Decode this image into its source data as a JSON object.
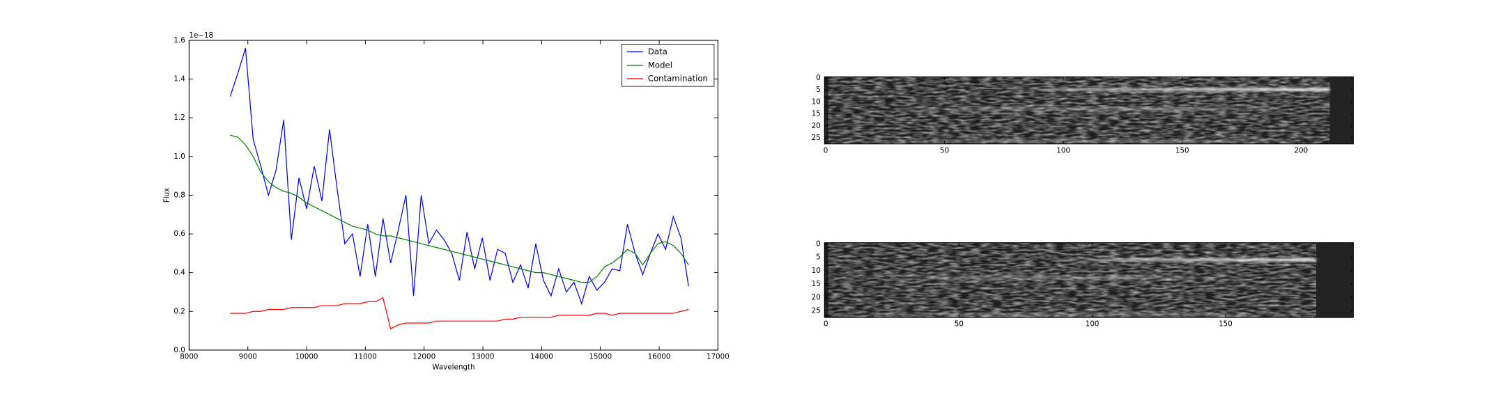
{
  "chart_data": [
    {
      "type": "line",
      "y_offset_label": "1e−18",
      "xlabel": "Wavelength",
      "ylabel": "Flux",
      "x": [
        8700,
        8830,
        8960,
        9090,
        9220,
        9350,
        9480,
        9610,
        9740,
        9870,
        10000,
        10130,
        10260,
        10390,
        10520,
        10650,
        10780,
        10910,
        11040,
        11170,
        11300,
        11430,
        11560,
        11690,
        11820,
        11950,
        12080,
        12210,
        12340,
        12470,
        12600,
        12730,
        12860,
        12990,
        13120,
        13250,
        13380,
        13510,
        13640,
        13770,
        13900,
        14030,
        14160,
        14290,
        14420,
        14550,
        14680,
        14810,
        14940,
        15070,
        15200,
        15330,
        15460,
        15590,
        15720,
        15850,
        15980,
        16110,
        16240,
        16370,
        16500
      ],
      "series": [
        {
          "name": "Data",
          "color": "#0000ff",
          "values": [
            1.31,
            1.43,
            1.56,
            1.09,
            0.95,
            0.8,
            0.93,
            1.19,
            0.57,
            0.89,
            0.73,
            0.95,
            0.77,
            1.14,
            0.83,
            0.55,
            0.6,
            0.38,
            0.65,
            0.38,
            0.68,
            0.45,
            0.62,
            0.8,
            0.28,
            0.8,
            0.55,
            0.62,
            0.57,
            0.5,
            0.36,
            0.61,
            0.42,
            0.58,
            0.36,
            0.52,
            0.5,
            0.35,
            0.44,
            0.32,
            0.55,
            0.36,
            0.28,
            0.42,
            0.3,
            0.35,
            0.24,
            0.38,
            0.31,
            0.35,
            0.42,
            0.41,
            0.65,
            0.5,
            0.39,
            0.5,
            0.6,
            0.52,
            0.69,
            0.58,
            0.33
          ]
        },
        {
          "name": "Model",
          "color": "#008000",
          "values": [
            1.11,
            1.1,
            1.06,
            1.0,
            0.92,
            0.87,
            0.84,
            0.82,
            0.81,
            0.79,
            0.76,
            0.74,
            0.72,
            0.7,
            0.68,
            0.66,
            0.64,
            0.63,
            0.62,
            0.6,
            0.59,
            0.59,
            0.58,
            0.57,
            0.56,
            0.55,
            0.54,
            0.53,
            0.52,
            0.51,
            0.5,
            0.49,
            0.48,
            0.47,
            0.46,
            0.45,
            0.44,
            0.43,
            0.42,
            0.41,
            0.4,
            0.4,
            0.39,
            0.38,
            0.37,
            0.36,
            0.35,
            0.35,
            0.38,
            0.43,
            0.45,
            0.48,
            0.52,
            0.5,
            0.44,
            0.5,
            0.55,
            0.56,
            0.54,
            0.5,
            0.44
          ]
        },
        {
          "name": "Contamination",
          "color": "#ff0000",
          "values": [
            0.19,
            0.19,
            0.19,
            0.2,
            0.2,
            0.21,
            0.21,
            0.21,
            0.22,
            0.22,
            0.22,
            0.22,
            0.23,
            0.23,
            0.23,
            0.24,
            0.24,
            0.24,
            0.25,
            0.25,
            0.27,
            0.11,
            0.13,
            0.14,
            0.14,
            0.14,
            0.14,
            0.15,
            0.15,
            0.15,
            0.15,
            0.15,
            0.15,
            0.15,
            0.15,
            0.15,
            0.16,
            0.16,
            0.17,
            0.17,
            0.17,
            0.17,
            0.17,
            0.18,
            0.18,
            0.18,
            0.18,
            0.18,
            0.19,
            0.19,
            0.18,
            0.19,
            0.19,
            0.19,
            0.19,
            0.19,
            0.19,
            0.19,
            0.19,
            0.2,
            0.21
          ]
        }
      ],
      "xlim": [
        8000,
        17000
      ],
      "xticks": [
        8000,
        9000,
        10000,
        11000,
        12000,
        13000,
        14000,
        15000,
        16000,
        17000
      ],
      "ylim": [
        0,
        1.6
      ],
      "yticks": [
        {
          "value": 0,
          "label": "0.0"
        },
        {
          "value": 0.2,
          "label": "0.2"
        },
        {
          "value": 0.4,
          "label": "0.4"
        },
        {
          "value": 0.6,
          "label": "0.6"
        },
        {
          "value": 0.8,
          "label": "0.8"
        },
        {
          "value": 1.0,
          "label": "1.0"
        },
        {
          "value": 1.2,
          "label": "1.2"
        },
        {
          "value": 1.4,
          "label": "1.4"
        },
        {
          "value": 1.6,
          "label": "1.6"
        }
      ],
      "legend": "upper right"
    },
    {
      "type": "image",
      "xlim": [
        -0.5,
        222
      ],
      "ylim": [
        27.5,
        -0.5
      ],
      "image_width": 212,
      "xticks": [
        0,
        50,
        100,
        150,
        200
      ],
      "yticks": [
        0,
        5,
        10,
        15,
        20,
        25
      ]
    },
    {
      "type": "image",
      "xlim": [
        -0.5,
        198
      ],
      "ylim": [
        27.5,
        -0.5
      ],
      "image_width": 184,
      "xticks": [
        0,
        50,
        100,
        150
      ],
      "yticks": [
        0,
        5,
        10,
        15,
        20,
        25
      ]
    }
  ]
}
